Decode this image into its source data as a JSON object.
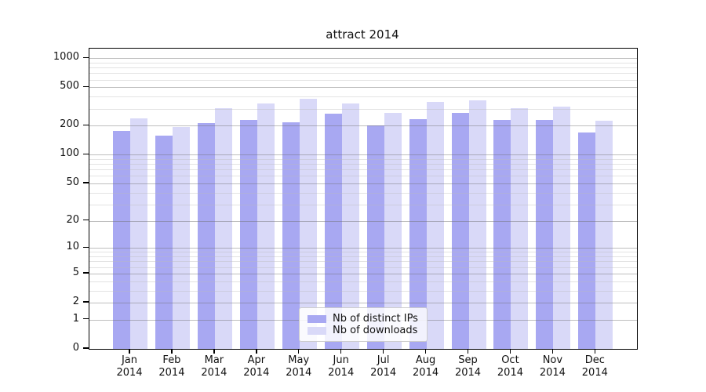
{
  "chart_data": {
    "type": "bar",
    "title": "attract 2014",
    "categories": [
      "Jan 2014",
      "Feb 2014",
      "Mar 2014",
      "Apr 2014",
      "May 2014",
      "Jun 2014",
      "Jul 2014",
      "Aug 2014",
      "Sep 2014",
      "Oct 2014",
      "Nov 2014",
      "Dec 2014"
    ],
    "x_tick_line1": [
      "Jan",
      "Feb",
      "Mar",
      "Apr",
      "May",
      "Jun",
      "Jul",
      "Aug",
      "Sep",
      "Oct",
      "Nov",
      "Dec"
    ],
    "x_tick_line2": "2014",
    "series": [
      {
        "name": "Nb of distinct IPs",
        "color": "#a8a8f2",
        "values": [
          177,
          157,
          215,
          230,
          218,
          265,
          202,
          235,
          270,
          230,
          228,
          170
        ]
      },
      {
        "name": "Nb of downloads",
        "color": "#d9d9f8",
        "values": [
          240,
          195,
          305,
          340,
          380,
          340,
          270,
          353,
          368,
          305,
          315,
          224
        ]
      }
    ],
    "xlabel": "",
    "ylabel": "",
    "yscale": "log1p",
    "ylim": [
      0,
      1256
    ],
    "y_ticks": [
      1000,
      500,
      200,
      100,
      50,
      20,
      10,
      5,
      2,
      1,
      0
    ],
    "y_minor_gridlines": [
      3,
      4,
      6,
      7,
      8,
      9,
      30,
      40,
      60,
      70,
      80,
      90,
      300,
      400,
      600,
      700,
      800,
      900
    ],
    "grid": true,
    "legend_position": "lower center"
  },
  "colors": {
    "bar_dark": "#a8a8f2",
    "bar_light": "#d9d9f8",
    "major_grid": "#bebebe",
    "minor_grid": "#e3e3e3",
    "axis": "#000000",
    "text": "#111111",
    "legend_border": "#cccccc"
  }
}
